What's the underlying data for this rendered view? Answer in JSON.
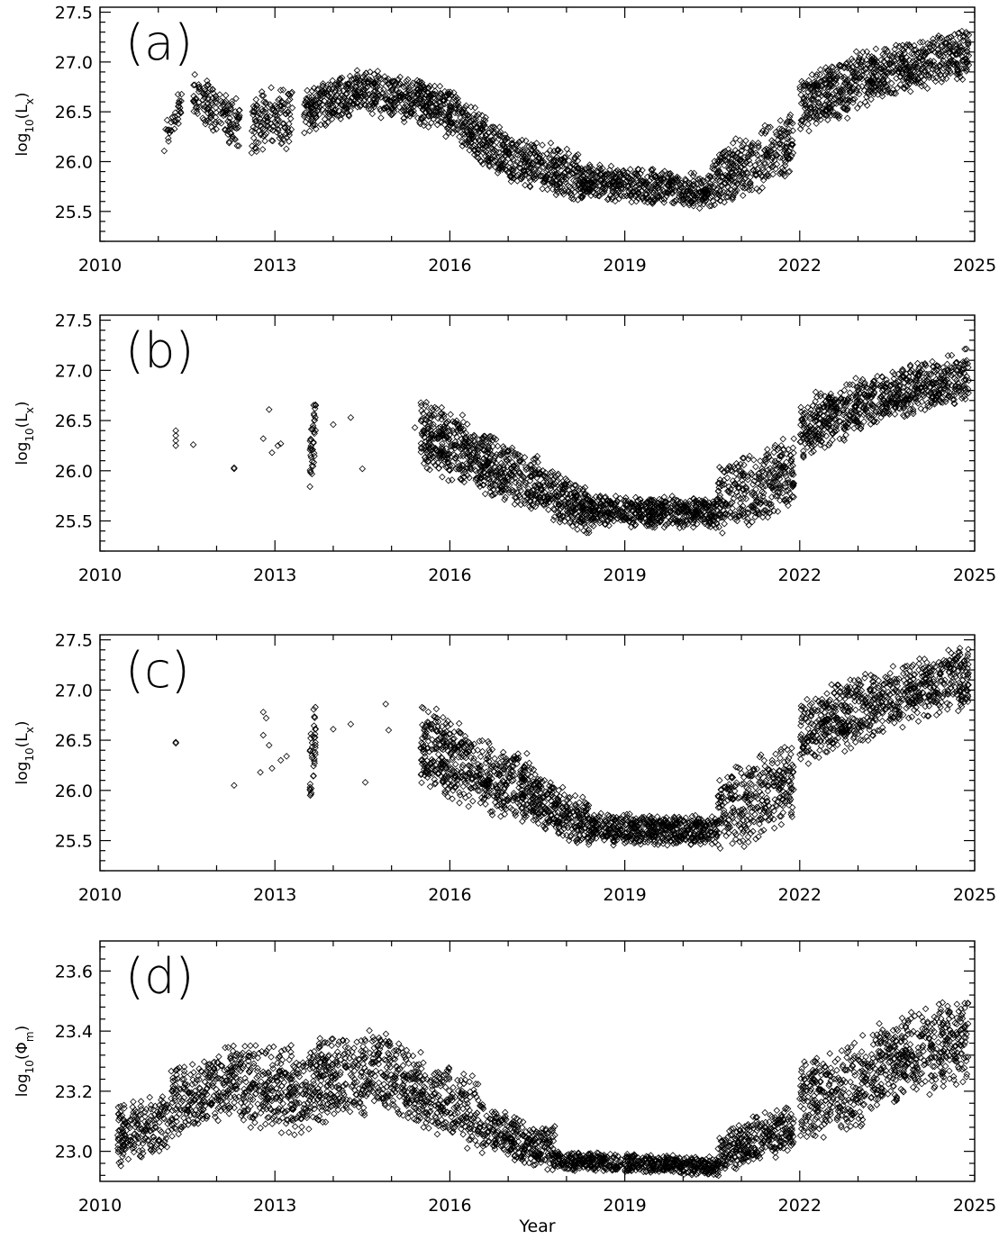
{
  "chart_data": [
    {
      "type": "scatter",
      "panel_label": "(a)",
      "ylabel": "log10(Lx)",
      "xlim": [
        2010,
        2025
      ],
      "ylim": [
        25.2,
        27.55
      ],
      "xticks": [
        2010,
        2013,
        2016,
        2019,
        2022,
        2025
      ],
      "yticks": [
        25.5,
        26.0,
        26.5,
        27.0,
        27.5
      ],
      "xlabel": "",
      "marker": "diamond",
      "segments": [
        {
          "x": [
            2011.1,
            2011.4
          ],
          "y": [
            26.2,
            26.6
          ],
          "spread": 0.2,
          "n": 35
        },
        {
          "x": [
            2011.6,
            2012.4
          ],
          "y": [
            26.7,
            26.35
          ],
          "spread": 0.25,
          "n": 150
        },
        {
          "x": [
            2012.6,
            2013.3
          ],
          "y": [
            26.4,
            26.45
          ],
          "spread": 0.3,
          "n": 140
        },
        {
          "x": [
            2013.5,
            2014.6
          ],
          "y": [
            26.5,
            26.75
          ],
          "spread": 0.22,
          "n": 260
        },
        {
          "x": [
            2014.6,
            2015.8
          ],
          "y": [
            26.7,
            26.55
          ],
          "spread": 0.22,
          "n": 280
        },
        {
          "x": [
            2015.8,
            2017.0
          ],
          "y": [
            26.55,
            26.05
          ],
          "spread": 0.25,
          "n": 300
        },
        {
          "x": [
            2017.0,
            2018.2
          ],
          "y": [
            26.05,
            25.85
          ],
          "spread": 0.25,
          "n": 280
        },
        {
          "x": [
            2018.2,
            2020.5
          ],
          "y": [
            25.8,
            25.7
          ],
          "spread": 0.18,
          "n": 500
        },
        {
          "x": [
            2020.5,
            2021.9
          ],
          "y": [
            25.8,
            26.2
          ],
          "spread": 0.3,
          "n": 320
        },
        {
          "x": [
            2022.0,
            2023.2
          ],
          "y": [
            26.55,
            26.85
          ],
          "spread": 0.3,
          "n": 320
        },
        {
          "x": [
            2023.2,
            2024.9
          ],
          "y": [
            26.85,
            27.1
          ],
          "spread": 0.25,
          "n": 420
        }
      ]
    },
    {
      "type": "scatter",
      "panel_label": "(b)",
      "ylabel": "log10(Lx)",
      "xlim": [
        2010,
        2025
      ],
      "ylim": [
        25.2,
        27.55
      ],
      "xticks": [
        2010,
        2013,
        2016,
        2019,
        2022,
        2025
      ],
      "yticks": [
        25.5,
        26.0,
        26.5,
        27.0,
        27.5
      ],
      "xlabel": "",
      "marker": "diamond",
      "points": [
        [
          2011.3,
          26.4
        ],
        [
          2011.3,
          26.35
        ],
        [
          2011.3,
          26.3
        ],
        [
          2011.3,
          26.25
        ],
        [
          2011.6,
          26.26
        ],
        [
          2012.3,
          26.03
        ],
        [
          2012.3,
          26.02
        ],
        [
          2012.8,
          26.32
        ],
        [
          2012.9,
          26.61
        ],
        [
          2012.95,
          26.18
        ],
        [
          2013.1,
          26.27
        ],
        [
          2013.05,
          26.25
        ],
        [
          2014.0,
          26.46
        ],
        [
          2014.3,
          26.53
        ],
        [
          2014.5,
          26.02
        ],
        [
          2015.4,
          26.43
        ]
      ],
      "segments": [
        {
          "x": [
            2013.6,
            2013.7
          ],
          "y": [
            26.1,
            26.5
          ],
          "spread": 0.35,
          "n": 40
        },
        {
          "x": [
            2015.5,
            2016.3
          ],
          "y": [
            26.35,
            26.2
          ],
          "spread": 0.35,
          "n": 260
        },
        {
          "x": [
            2016.3,
            2017.5
          ],
          "y": [
            26.15,
            25.85
          ],
          "spread": 0.3,
          "n": 330
        },
        {
          "x": [
            2017.5,
            2018.4
          ],
          "y": [
            25.85,
            25.6
          ],
          "spread": 0.25,
          "n": 240
        },
        {
          "x": [
            2018.4,
            2020.6
          ],
          "y": [
            25.6,
            25.58
          ],
          "spread": 0.15,
          "n": 520
        },
        {
          "x": [
            2020.6,
            2021.9
          ],
          "y": [
            25.7,
            26.0
          ],
          "spread": 0.35,
          "n": 320
        },
        {
          "x": [
            2022.0,
            2023.2
          ],
          "y": [
            26.4,
            26.7
          ],
          "spread": 0.3,
          "n": 320
        },
        {
          "x": [
            2023.2,
            2024.9
          ],
          "y": [
            26.7,
            26.95
          ],
          "spread": 0.25,
          "n": 420
        }
      ]
    },
    {
      "type": "scatter",
      "panel_label": "(c)",
      "ylabel": "log10(Lx)",
      "xlim": [
        2010,
        2025
      ],
      "ylim": [
        25.2,
        27.55
      ],
      "xticks": [
        2010,
        2013,
        2016,
        2019,
        2022,
        2025
      ],
      "yticks": [
        25.5,
        26.0,
        26.5,
        27.0,
        27.5
      ],
      "xlabel": "",
      "marker": "diamond",
      "points": [
        [
          2011.3,
          26.48
        ],
        [
          2011.3,
          26.47
        ],
        [
          2012.3,
          26.05
        ],
        [
          2012.75,
          26.18
        ],
        [
          2012.8,
          26.55
        ],
        [
          2012.8,
          26.78
        ],
        [
          2012.85,
          26.72
        ],
        [
          2012.9,
          26.45
        ],
        [
          2012.95,
          26.22
        ],
        [
          2013.1,
          26.3
        ],
        [
          2013.2,
          26.34
        ],
        [
          2014.0,
          26.61
        ],
        [
          2014.3,
          26.66
        ],
        [
          2014.55,
          26.08
        ],
        [
          2014.9,
          26.86
        ],
        [
          2014.95,
          26.6
        ]
      ],
      "segments": [
        {
          "x": [
            2013.6,
            2013.7
          ],
          "y": [
            26.2,
            26.6
          ],
          "spread": 0.35,
          "n": 40
        },
        {
          "x": [
            2015.5,
            2016.3
          ],
          "y": [
            26.45,
            26.25
          ],
          "spread": 0.4,
          "n": 260
        },
        {
          "x": [
            2016.3,
            2017.5
          ],
          "y": [
            26.2,
            25.95
          ],
          "spread": 0.35,
          "n": 330
        },
        {
          "x": [
            2017.5,
            2018.4
          ],
          "y": [
            25.9,
            25.65
          ],
          "spread": 0.25,
          "n": 240
        },
        {
          "x": [
            2018.4,
            2020.6
          ],
          "y": [
            25.62,
            25.6
          ],
          "spread": 0.15,
          "n": 520
        },
        {
          "x": [
            2020.6,
            2021.9
          ],
          "y": [
            25.75,
            26.1
          ],
          "spread": 0.4,
          "n": 320
        },
        {
          "x": [
            2022.0,
            2023.2
          ],
          "y": [
            26.6,
            26.85
          ],
          "spread": 0.35,
          "n": 320
        },
        {
          "x": [
            2023.2,
            2024.9
          ],
          "y": [
            26.85,
            27.15
          ],
          "spread": 0.3,
          "n": 420
        }
      ]
    },
    {
      "type": "scatter",
      "panel_label": "(d)",
      "ylabel": "log10(Φm)",
      "xlim": [
        2010,
        2025
      ],
      "ylim": [
        22.9,
        23.7
      ],
      "xticks": [
        2010,
        2013,
        2016,
        2019,
        2022,
        2025
      ],
      "yticks": [
        23.0,
        23.2,
        23.4,
        23.6
      ],
      "xlabel": "Year",
      "marker": "diamond",
      "segments": [
        {
          "x": [
            2010.3,
            2011.2
          ],
          "y": [
            23.05,
            23.1
          ],
          "spread": 0.1,
          "n": 200
        },
        {
          "x": [
            2011.2,
            2012.4
          ],
          "y": [
            23.15,
            23.25
          ],
          "spread": 0.12,
          "n": 280
        },
        {
          "x": [
            2012.4,
            2013.6
          ],
          "y": [
            23.22,
            23.2
          ],
          "spread": 0.14,
          "n": 300
        },
        {
          "x": [
            2013.6,
            2015.0
          ],
          "y": [
            23.22,
            23.28
          ],
          "spread": 0.14,
          "n": 360
        },
        {
          "x": [
            2015.0,
            2016.5
          ],
          "y": [
            23.25,
            23.12
          ],
          "spread": 0.12,
          "n": 340
        },
        {
          "x": [
            2016.5,
            2017.8
          ],
          "y": [
            23.08,
            23.0
          ],
          "spread": 0.08,
          "n": 300
        },
        {
          "x": [
            2017.8,
            2020.6
          ],
          "y": [
            22.97,
            22.95
          ],
          "spread": 0.03,
          "n": 560
        },
        {
          "x": [
            2020.6,
            2021.9
          ],
          "y": [
            23.0,
            23.08
          ],
          "spread": 0.08,
          "n": 300
        },
        {
          "x": [
            2022.0,
            2023.3
          ],
          "y": [
            23.15,
            23.25
          ],
          "spread": 0.14,
          "n": 320
        },
        {
          "x": [
            2023.3,
            2024.9
          ],
          "y": [
            23.28,
            23.38
          ],
          "spread": 0.14,
          "n": 420
        }
      ]
    }
  ]
}
